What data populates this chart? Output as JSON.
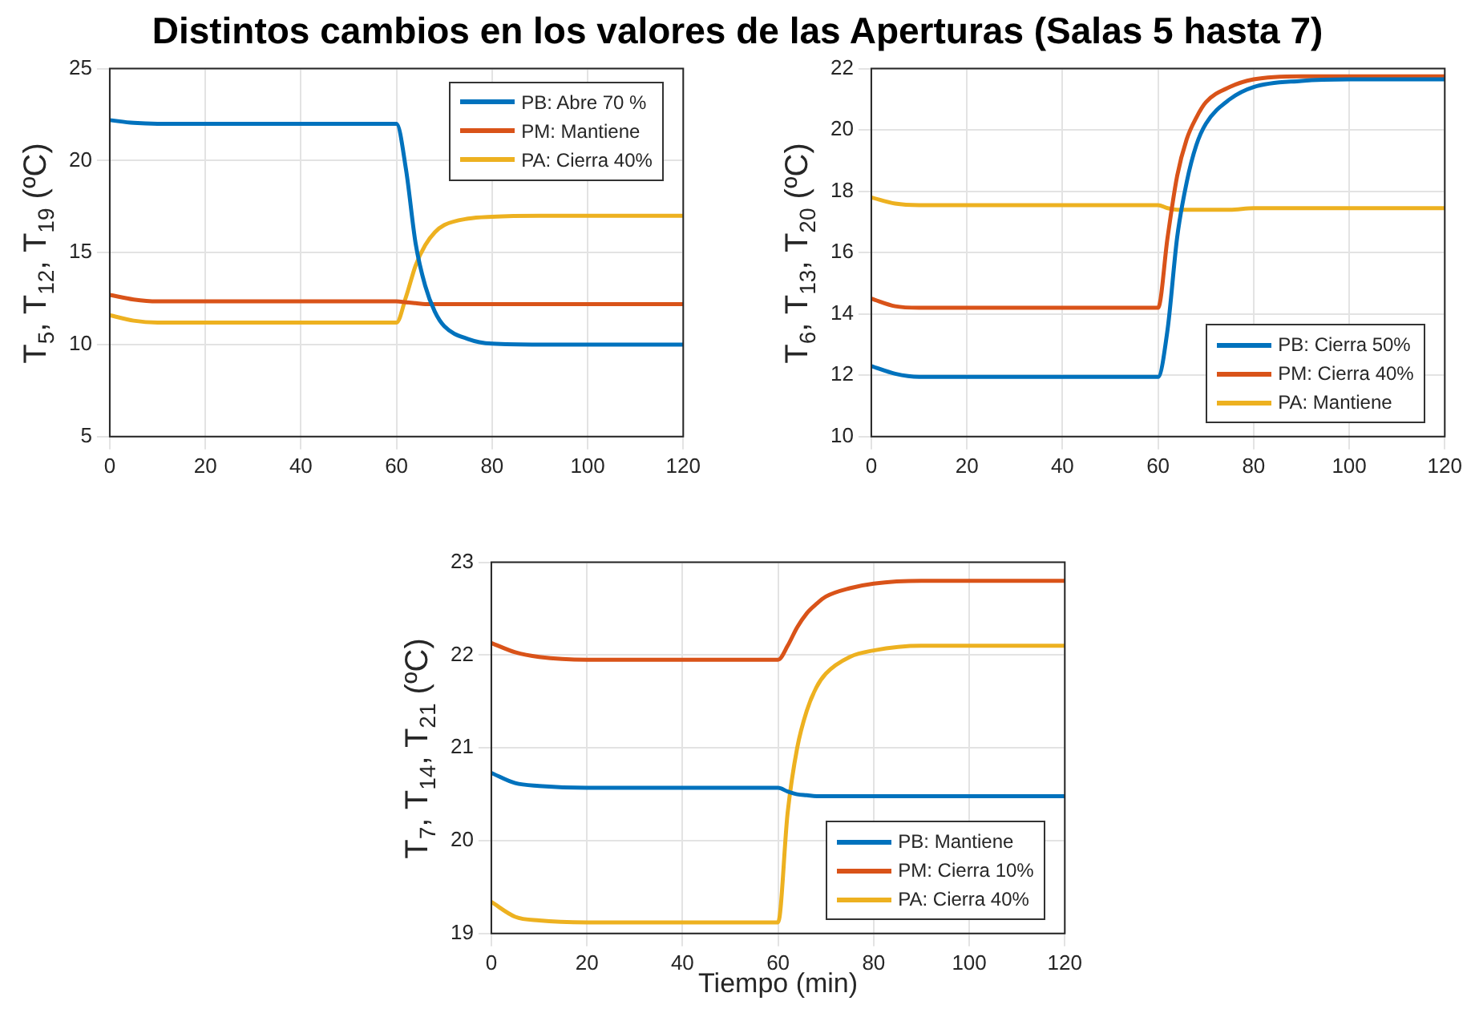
{
  "chart_data": [
    {
      "type": "line",
      "title": "Distintos cambios en los valores de las Aperturas (Salas 5 hasta 7)",
      "ylabel": "T$_{5}$, T$_{12}$, T$_{19}$ (ºC)",
      "x": [
        0,
        5,
        10,
        20,
        40,
        60,
        62,
        64,
        66,
        68,
        70,
        75,
        80,
        90,
        100,
        120
      ],
      "xlim": [
        0,
        120
      ],
      "xticks": [
        0,
        20,
        40,
        60,
        80,
        100,
        120
      ],
      "ylim": [
        5,
        25
      ],
      "yticks": [
        5,
        10,
        15,
        20,
        25
      ],
      "grid": true,
      "legend": "top right",
      "marker": "none",
      "line_style": "solid",
      "series": [
        {
          "name": "PB: Abre 70 %",
          "color": "#0072bd",
          "values": [
            22.2,
            22.05,
            22.0,
            22.0,
            22.0,
            22.0,
            19.5,
            15.5,
            13.2,
            11.8,
            11.0,
            10.3,
            10.05,
            10.0,
            10.0,
            10.0
          ]
        },
        {
          "name": "PM: Mantiene",
          "color": "#d95319",
          "values": [
            12.7,
            12.45,
            12.35,
            12.35,
            12.35,
            12.35,
            12.3,
            12.25,
            12.2,
            12.2,
            12.2,
            12.2,
            12.2,
            12.2,
            12.2,
            12.2
          ]
        },
        {
          "name": "PA: Cierra 40%",
          "color": "#edb120",
          "values": [
            11.6,
            11.3,
            11.2,
            11.2,
            11.2,
            11.2,
            12.6,
            14.3,
            15.4,
            16.1,
            16.5,
            16.85,
            16.95,
            17.0,
            17.0,
            17.0
          ]
        }
      ]
    },
    {
      "type": "line",
      "ylabel": "T$_{6}$, T$_{13}$, T$_{20}$ (ºC)",
      "x": [
        0,
        5,
        10,
        20,
        40,
        60,
        62,
        64,
        66,
        68,
        70,
        75,
        80,
        90,
        100,
        120
      ],
      "xlim": [
        0,
        120
      ],
      "xticks": [
        0,
        20,
        40,
        60,
        80,
        100,
        120
      ],
      "ylim": [
        10,
        22
      ],
      "yticks": [
        10,
        12,
        14,
        16,
        18,
        20,
        22
      ],
      "grid": true,
      "legend": "bottom right",
      "marker": "none",
      "line_style": "solid",
      "series": [
        {
          "name": "PB: Cierra 50%",
          "color": "#0072bd",
          "values": [
            12.3,
            12.05,
            11.95,
            11.95,
            11.95,
            11.95,
            13.5,
            16.5,
            18.3,
            19.5,
            20.2,
            21.0,
            21.4,
            21.6,
            21.65,
            21.65
          ]
        },
        {
          "name": "PM: Cierra 40%",
          "color": "#d95319",
          "values": [
            14.5,
            14.25,
            14.2,
            14.2,
            14.2,
            14.2,
            16.5,
            18.5,
            19.7,
            20.4,
            20.9,
            21.4,
            21.65,
            21.75,
            21.75,
            21.75
          ]
        },
        {
          "name": "PA: Mantiene",
          "color": "#edb120",
          "values": [
            17.8,
            17.6,
            17.55,
            17.55,
            17.55,
            17.55,
            17.45,
            17.4,
            17.4,
            17.4,
            17.4,
            17.4,
            17.45,
            17.45,
            17.45,
            17.45
          ]
        }
      ]
    },
    {
      "type": "line",
      "xlabel": "Tiempo (min)",
      "ylabel": "T$_{7}$, T$_{14}$, T$_{21}$ (ºC)",
      "x": [
        0,
        5,
        10,
        20,
        40,
        60,
        62,
        64,
        66,
        68,
        70,
        75,
        80,
        90,
        100,
        120
      ],
      "xlim": [
        0,
        120
      ],
      "xticks": [
        0,
        20,
        40,
        60,
        80,
        100,
        120
      ],
      "ylim": [
        19,
        23
      ],
      "yticks": [
        19,
        20,
        21,
        22,
        23
      ],
      "grid": true,
      "legend": "bottom right",
      "marker": "none",
      "line_style": "solid",
      "series": [
        {
          "name": "PB: Mantiene",
          "color": "#0072bd",
          "values": [
            20.73,
            20.62,
            20.59,
            20.57,
            20.57,
            20.57,
            20.53,
            20.5,
            20.49,
            20.48,
            20.48,
            20.48,
            20.48,
            20.48,
            20.48,
            20.48
          ]
        },
        {
          "name": "PM: Cierra 10%",
          "color": "#d95319",
          "values": [
            22.13,
            22.03,
            21.98,
            21.95,
            21.95,
            21.95,
            22.1,
            22.3,
            22.45,
            22.55,
            22.63,
            22.72,
            22.77,
            22.8,
            22.8,
            22.8
          ]
        },
        {
          "name": "PA: Cierra 40%",
          "color": "#edb120",
          "values": [
            19.34,
            19.18,
            19.14,
            19.12,
            19.12,
            19.12,
            20.3,
            21.0,
            21.4,
            21.65,
            21.8,
            21.98,
            22.05,
            22.1,
            22.1,
            22.1
          ]
        }
      ]
    }
  ]
}
